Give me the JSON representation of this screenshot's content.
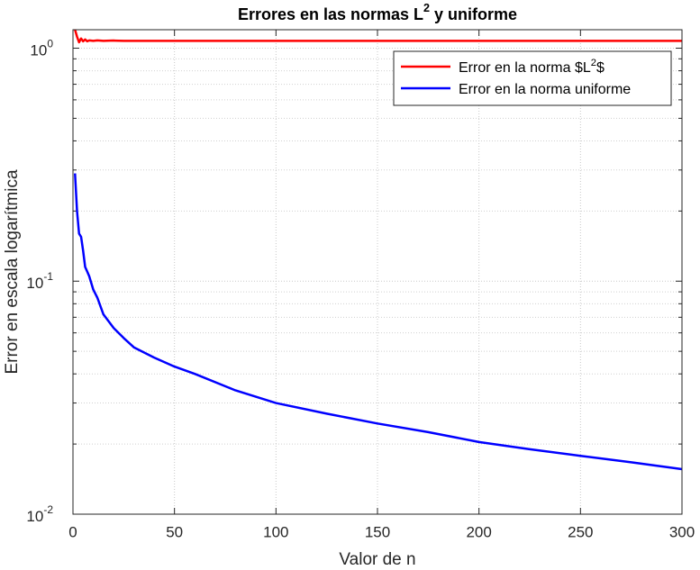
{
  "chart_data": {
    "type": "line",
    "title": [
      {
        "text": "Errores en las normas L"
      },
      {
        "text": "2",
        "sup": true
      },
      {
        "text": " y uniforme"
      }
    ],
    "xlabel": "Valor de n",
    "ylabel": "Error en escala logarítmica",
    "x": [
      1,
      2,
      3,
      4,
      5,
      6,
      7,
      8,
      10,
      12,
      15,
      20,
      25,
      30,
      40,
      50,
      60,
      80,
      100,
      125,
      150,
      175,
      200,
      225,
      250,
      275,
      300
    ],
    "series": [
      {
        "name": [
          {
            "text": "Error en la norma $L"
          },
          {
            "text": "2",
            "sup": true
          },
          {
            "text": "$"
          }
        ],
        "color": "#ff0000",
        "values": [
          1.2,
          1.12,
          1.06,
          1.1,
          1.07,
          1.09,
          1.07,
          1.08,
          1.075,
          1.08,
          1.075,
          1.078,
          1.075,
          1.075,
          1.075,
          1.075,
          1.075,
          1.075,
          1.075,
          1.075,
          1.075,
          1.075,
          1.075,
          1.075,
          1.075,
          1.075,
          1.075
        ]
      },
      {
        "name": [
          {
            "text": "Error en la norma uniforme"
          }
        ],
        "color": "#0000ff",
        "values": [
          0.29,
          0.2,
          0.16,
          0.155,
          0.135,
          0.115,
          0.11,
          0.105,
          0.092,
          0.085,
          0.072,
          0.063,
          0.057,
          0.052,
          0.047,
          0.043,
          0.04,
          0.034,
          0.03,
          0.027,
          0.0245,
          0.0225,
          0.0204,
          0.019,
          0.0178,
          0.0167,
          0.0156
        ]
      }
    ],
    "xlim": [
      0,
      300
    ],
    "xticks": [
      0,
      50,
      100,
      150,
      200,
      250,
      300
    ],
    "ylim": [
      0.01,
      1.2
    ],
    "yscale": "log",
    "yticks": [
      {
        "value": 0.01,
        "label": "10",
        "exponent": "-2"
      },
      {
        "value": 0.1,
        "label": "10",
        "exponent": "-1"
      },
      {
        "value": 1,
        "label": "10",
        "exponent": "0"
      }
    ],
    "yminorticks": [
      0.02,
      0.03,
      0.04,
      0.05,
      0.06,
      0.07,
      0.08,
      0.09,
      0.2,
      0.3,
      0.4,
      0.5,
      0.6,
      0.7,
      0.8,
      0.9
    ],
    "grid": true,
    "legend": "northeast"
  }
}
